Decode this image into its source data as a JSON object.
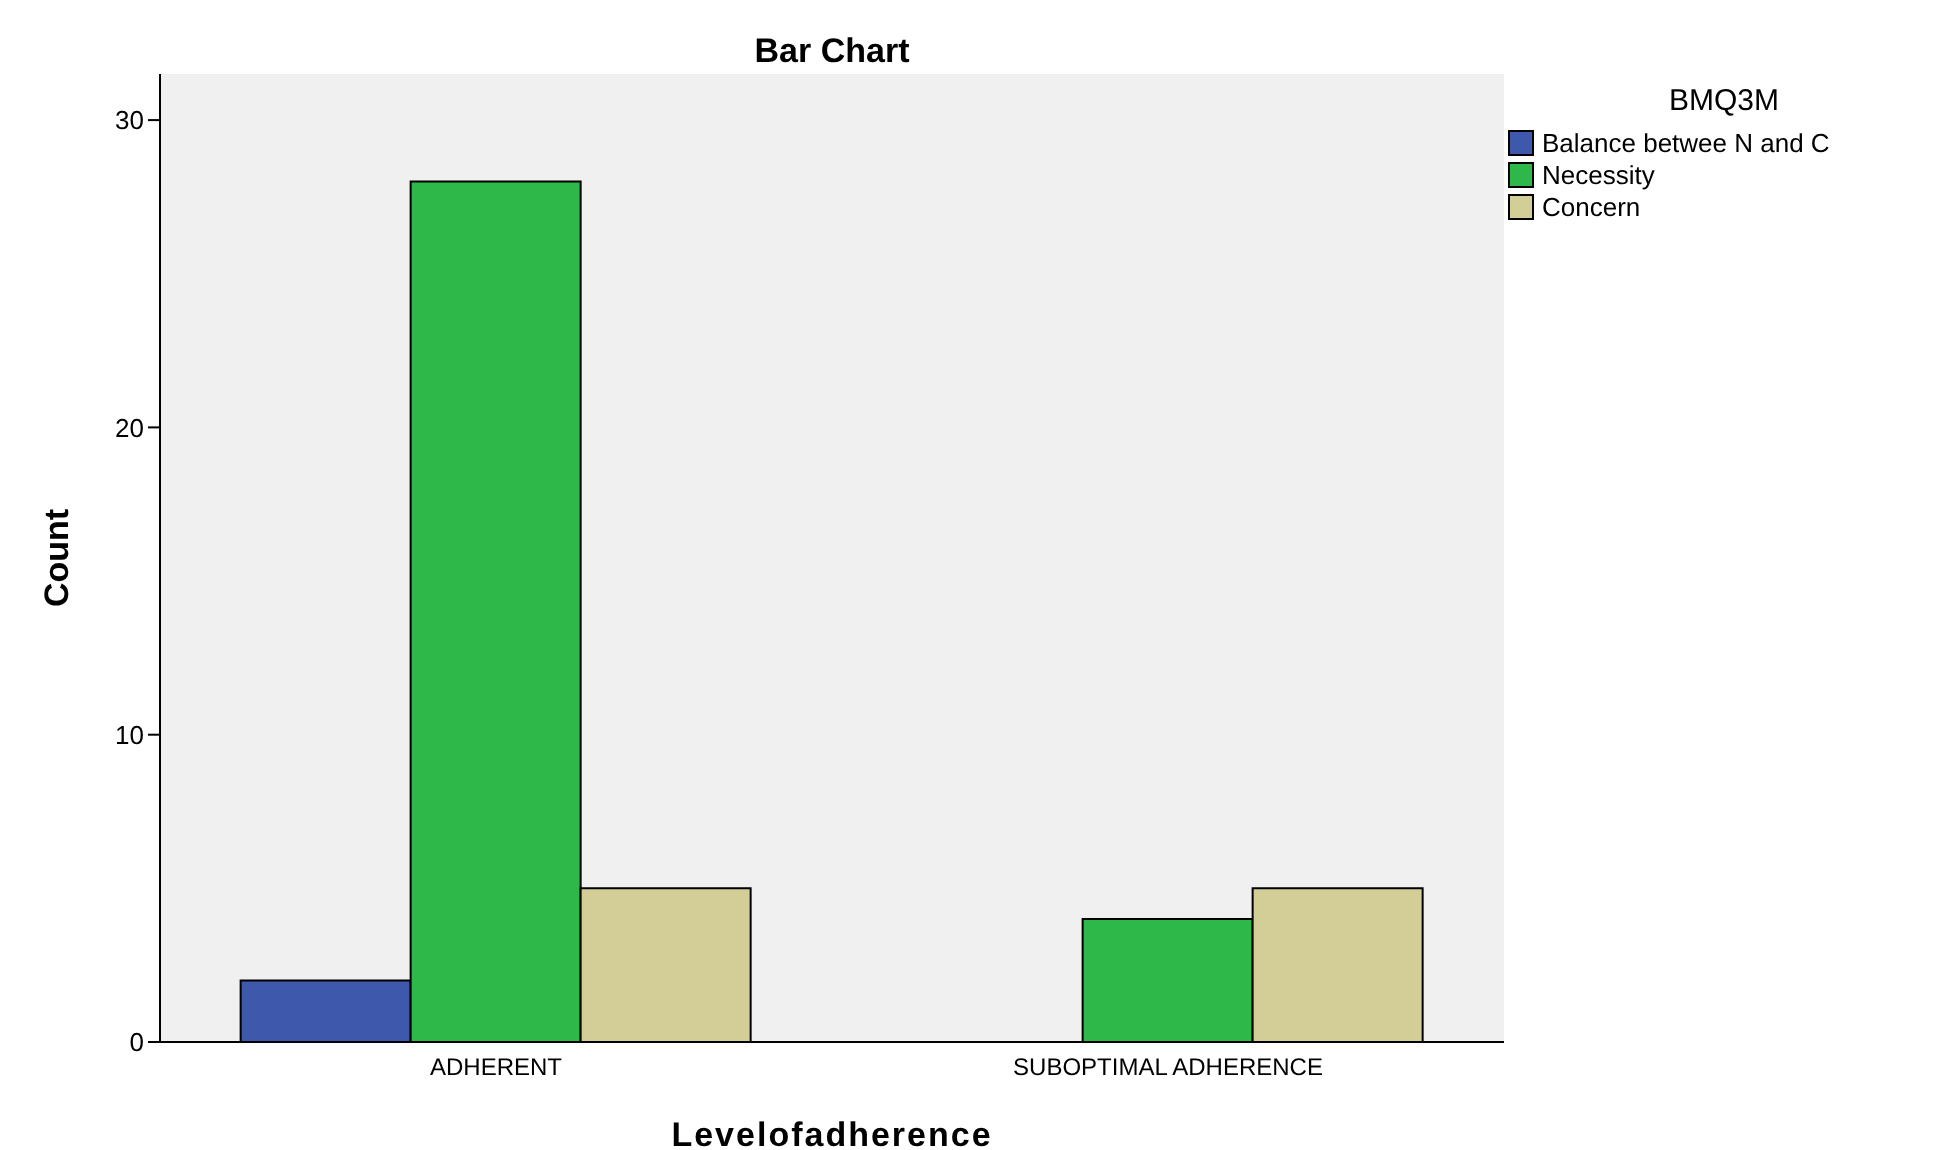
{
  "chart_data": {
    "type": "bar",
    "title": "Bar Chart",
    "xlabel": "Levelofadherence",
    "ylabel": "Count",
    "legend_title": "BMQ3M",
    "categories": [
      "ADHERENT",
      "SUBOPTIMAL ADHERENCE"
    ],
    "series": [
      {
        "name": "Balance betwee N and C",
        "color": "#3e58ac",
        "values": [
          2,
          null
        ]
      },
      {
        "name": "Necessity",
        "color": "#2eb84a",
        "values": [
          28,
          4
        ]
      },
      {
        "name": "Concern",
        "color": "#d3ce97",
        "values": [
          5,
          5
        ]
      }
    ],
    "ylim": [
      0,
      31.5
    ],
    "yticks": [
      0,
      10,
      20,
      30
    ],
    "grid": false,
    "legend": "top right"
  }
}
